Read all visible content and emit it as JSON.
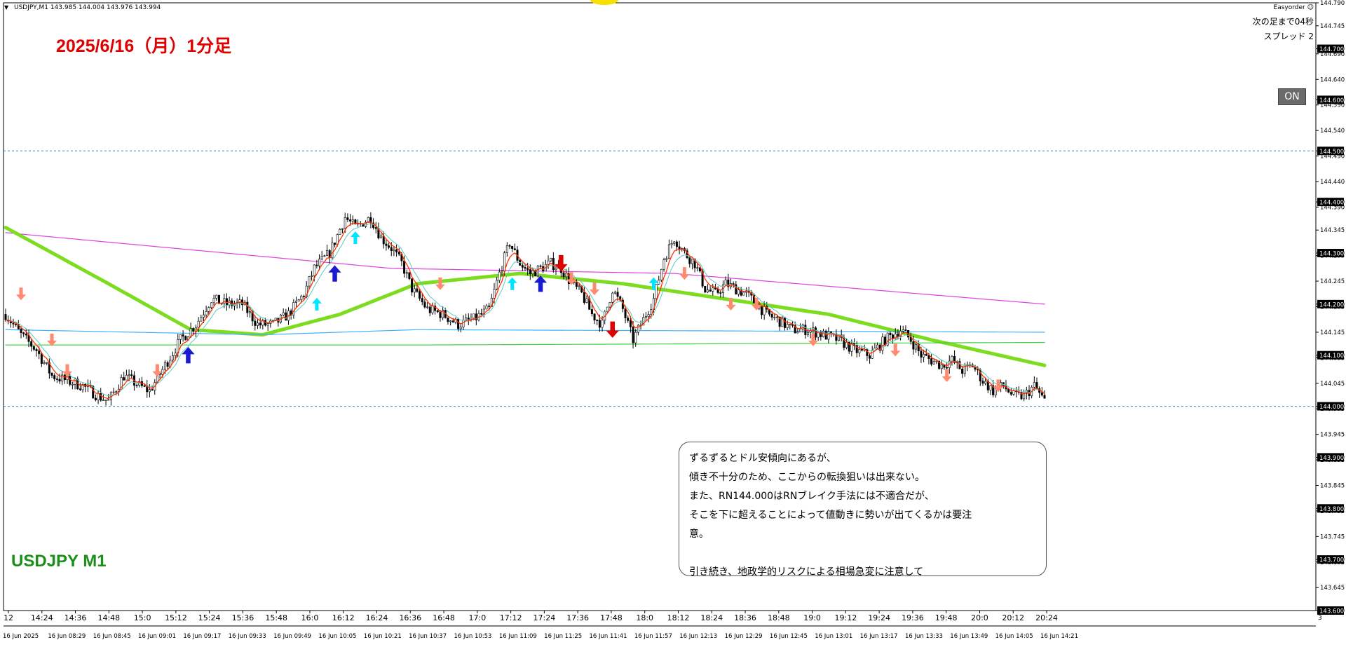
{
  "header": {
    "symbol_line": "USDJPY,M1  143.985 144.004 143.976 143.994",
    "arrow": "▼"
  },
  "annotations": {
    "date_title": "2025/6/16（月）1分足",
    "symbol_title": "USDJPY M1",
    "corner": {
      "easyorder": "Easyorder ☺",
      "next_bar": "次の足まで04秒",
      "spread": "スプレッド 2"
    },
    "on_button": "ON",
    "note_lines": [
      "ずるずるとドル安傾向にあるが、",
      "傾き不十分のため、ここからの転換狙いは出来ない。",
      "また、RN144.000はRNブレイク手法には不適合だが、",
      "そこを下に超えることによって値動きに勢いが出てくるかは要注",
      "意。",
      "",
      "引き続き、地政学的リスクによる相場急変に注意して"
    ]
  },
  "colors": {
    "background": "#ffffff",
    "candle": "#000000",
    "ema_fast": "#ff3300",
    "ema_slow": "#5cc8c0",
    "ma_green_thick": "#7ddc1f",
    "ma_magenta": "#e040e0",
    "ma_cyan": "#40b0ff",
    "ma_green_thin": "#40d040",
    "hline": "#3a78c0",
    "date_title": "#e00000",
    "symbol_title": "#1a8f1a",
    "arrow_buy_light": "#00e5ff",
    "arrow_buy_dark": "#1a1ad0",
    "arrow_sell_light": "#ff8a70",
    "arrow_sell_dark": "#e00000"
  },
  "chart_data": {
    "type": "candlestick",
    "symbol": "USDJPY",
    "timeframe": "M1",
    "ylim": [
      143.6,
      144.79
    ],
    "y_ticks": [
      "144.790",
      "144.745",
      "144.700",
      "144.690",
      "144.640",
      "144.600",
      "144.590",
      "144.540",
      "144.500",
      "144.490",
      "144.440",
      "144.400",
      "144.390",
      "144.345",
      "144.300",
      "144.295",
      "144.245",
      "144.200",
      "144.195",
      "144.145",
      "144.100",
      "144.095",
      "144.045",
      "144.000",
      "143.995",
      "143.945",
      "143.900",
      "143.895",
      "143.845",
      "143.800",
      "143.795",
      "143.745",
      "143.700",
      "143.695",
      "143.645",
      "143.600"
    ],
    "highlighted_price_labels": [
      "144.700",
      "144.600",
      "144.500",
      "144.400",
      "144.300",
      "144.200",
      "144.100",
      "144.000",
      "143.900",
      "143.800",
      "143.700",
      "143.600"
    ],
    "horizontal_lines": [
      144.5,
      144.0
    ],
    "x_time_labels": [
      "12",
      "14:24",
      "14:36",
      "14:48",
      "15:0",
      "15:12",
      "15:24",
      "15:36",
      "15:48",
      "16:0",
      "16:12",
      "16:24",
      "16:36",
      "16:48",
      "17:0",
      "17:12",
      "17:24",
      "17:36",
      "17:48",
      "18:0",
      "18:12",
      "18:24",
      "18:36",
      "18:48",
      "19:0",
      "19:12",
      "19:24",
      "19:36",
      "19:48",
      "20:0",
      "20:12",
      "20:24"
    ],
    "x_date_labels": [
      "16 Jun 2025",
      "16 Jun 08:29",
      "16 Jun 08:45",
      "16 Jun 09:01",
      "16 Jun 09:17",
      "16 Jun 09:33",
      "16 Jun 09:49",
      "16 Jun 10:05",
      "16 Jun 10:21",
      "16 Jun 10:37",
      "16 Jun 10:53",
      "16 Jun 11:09",
      "16 Jun 11:25",
      "16 Jun 11:41",
      "16 Jun 11:57",
      "16 Jun 12:13",
      "16 Jun 12:29",
      "16 Jun 12:45",
      "16 Jun 13:01",
      "16 Jun 13:17",
      "16 Jun 13:33",
      "16 Jun 13:49",
      "16 Jun 14:05",
      "16 Jun 14:21"
    ],
    "bottom_right_label": "3",
    "close_path": [
      [
        0,
        144.18
      ],
      [
        6,
        144.14
      ],
      [
        12,
        144.11
      ],
      [
        18,
        144.06
      ],
      [
        24,
        144.05
      ],
      [
        30,
        144.04
      ],
      [
        36,
        144.02
      ],
      [
        40,
        144.01
      ],
      [
        46,
        144.06
      ],
      [
        52,
        144.04
      ],
      [
        56,
        144.03
      ],
      [
        62,
        144.08
      ],
      [
        68,
        144.13
      ],
      [
        74,
        144.16
      ],
      [
        80,
        144.21
      ],
      [
        86,
        144.2
      ],
      [
        92,
        144.2
      ],
      [
        98,
        144.16
      ],
      [
        104,
        144.16
      ],
      [
        110,
        144.18
      ],
      [
        116,
        144.22
      ],
      [
        120,
        144.27
      ],
      [
        126,
        144.3
      ],
      [
        132,
        144.37
      ],
      [
        136,
        144.35
      ],
      [
        142,
        144.37
      ],
      [
        146,
        144.33
      ],
      [
        150,
        144.31
      ],
      [
        154,
        144.28
      ],
      [
        158,
        144.23
      ],
      [
        164,
        144.19
      ],
      [
        170,
        144.18
      ],
      [
        176,
        144.16
      ],
      [
        182,
        144.17
      ],
      [
        188,
        144.19
      ],
      [
        192,
        144.26
      ],
      [
        196,
        144.32
      ],
      [
        200,
        144.28
      ],
      [
        204,
        144.26
      ],
      [
        208,
        144.27
      ],
      [
        212,
        144.28
      ],
      [
        216,
        144.27
      ],
      [
        220,
        144.24
      ],
      [
        224,
        144.22
      ],
      [
        228,
        144.18
      ],
      [
        232,
        144.16
      ],
      [
        236,
        144.23
      ],
      [
        240,
        144.19
      ],
      [
        244,
        144.13
      ],
      [
        248,
        144.17
      ],
      [
        252,
        144.21
      ],
      [
        256,
        144.29
      ],
      [
        260,
        144.33
      ],
      [
        264,
        144.3
      ],
      [
        268,
        144.28
      ],
      [
        272,
        144.23
      ],
      [
        276,
        144.22
      ],
      [
        280,
        144.24
      ],
      [
        284,
        144.23
      ],
      [
        288,
        144.22
      ],
      [
        292,
        144.2
      ],
      [
        296,
        144.18
      ],
      [
        300,
        144.17
      ],
      [
        306,
        144.15
      ],
      [
        312,
        144.15
      ],
      [
        318,
        144.14
      ],
      [
        324,
        144.13
      ],
      [
        330,
        144.11
      ],
      [
        336,
        144.1
      ],
      [
        342,
        144.13
      ],
      [
        348,
        144.15
      ],
      [
        352,
        144.13
      ],
      [
        356,
        144.1
      ],
      [
        360,
        144.09
      ],
      [
        364,
        144.08
      ],
      [
        368,
        144.09
      ],
      [
        372,
        144.07
      ],
      [
        376,
        144.08
      ],
      [
        380,
        144.05
      ],
      [
        384,
        144.03
      ],
      [
        388,
        144.04
      ],
      [
        392,
        144.02
      ],
      [
        396,
        144.02
      ],
      [
        400,
        144.04
      ],
      [
        404,
        144.01
      ]
    ],
    "candle_count": 405,
    "moving_averages": [
      {
        "color_key": "ma_magenta",
        "values": [
          [
            0,
            144.34
          ],
          [
            150,
            144.27
          ],
          [
            260,
            144.26
          ],
          [
            404,
            144.2
          ]
        ]
      },
      {
        "color_key": "ma_green_thick",
        "values": [
          [
            0,
            144.35
          ],
          [
            40,
            144.24
          ],
          [
            72,
            144.15
          ],
          [
            100,
            144.14
          ],
          [
            130,
            144.18
          ],
          [
            160,
            144.24
          ],
          [
            200,
            144.26
          ],
          [
            240,
            144.24
          ],
          [
            280,
            144.21
          ],
          [
            320,
            144.18
          ],
          [
            360,
            144.13
          ],
          [
            404,
            144.08
          ]
        ]
      },
      {
        "color_key": "ma_cyan",
        "values": [
          [
            0,
            144.15
          ],
          [
            100,
            144.14
          ],
          [
            160,
            144.15
          ],
          [
            404,
            144.145
          ]
        ]
      },
      {
        "color_key": "ma_green_thin",
        "values": [
          [
            0,
            144.12
          ],
          [
            160,
            144.12
          ],
          [
            404,
            144.125
          ]
        ]
      }
    ],
    "signal_arrows": [
      {
        "i": 6,
        "dir": "down",
        "style": "light",
        "price": 144.22
      },
      {
        "i": 18,
        "dir": "down",
        "style": "light",
        "price": 144.13
      },
      {
        "i": 24,
        "dir": "down",
        "style": "light",
        "price": 144.07
      },
      {
        "i": 59,
        "dir": "down",
        "style": "light",
        "price": 144.07
      },
      {
        "i": 71,
        "dir": "up",
        "style": "dark",
        "price": 144.1
      },
      {
        "i": 121,
        "dir": "up",
        "style": "light",
        "price": 144.2
      },
      {
        "i": 128,
        "dir": "up",
        "style": "dark",
        "price": 144.26
      },
      {
        "i": 136,
        "dir": "up",
        "style": "light",
        "price": 144.33
      },
      {
        "i": 169,
        "dir": "down",
        "style": "light",
        "price": 144.24
      },
      {
        "i": 197,
        "dir": "up",
        "style": "light",
        "price": 144.24
      },
      {
        "i": 208,
        "dir": "up",
        "style": "dark",
        "price": 144.24
      },
      {
        "i": 216,
        "dir": "down",
        "style": "dark",
        "price": 144.28
      },
      {
        "i": 220,
        "dir": "down",
        "style": "light",
        "price": 144.25
      },
      {
        "i": 229,
        "dir": "down",
        "style": "light",
        "price": 144.23
      },
      {
        "i": 236,
        "dir": "down",
        "style": "dark",
        "price": 144.15
      },
      {
        "i": 252,
        "dir": "up",
        "style": "light",
        "price": 144.24
      },
      {
        "i": 264,
        "dir": "down",
        "style": "light",
        "price": 144.26
      },
      {
        "i": 282,
        "dir": "down",
        "style": "light",
        "price": 144.2
      },
      {
        "i": 292,
        "dir": "down",
        "style": "light",
        "price": 144.2
      },
      {
        "i": 314,
        "dir": "down",
        "style": "light",
        "price": 144.13
      },
      {
        "i": 346,
        "dir": "down",
        "style": "light",
        "price": 144.11
      },
      {
        "i": 366,
        "dir": "down",
        "style": "light",
        "price": 144.06
      },
      {
        "i": 386,
        "dir": "down",
        "style": "light",
        "price": 144.04
      }
    ]
  }
}
